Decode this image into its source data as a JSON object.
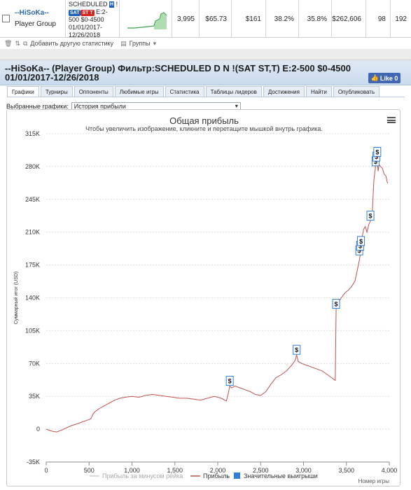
{
  "top_row": {
    "player_name": "--HiSoKa--",
    "player_group": "Player Group",
    "filter_lines": [
      "SCHEDULED",
      "E:2-",
      "500 $0-4500",
      "01/01/2017-",
      "12/26/2018"
    ],
    "filter_suffix": "!",
    "badge_h": "H",
    "badge_sat": "SAT",
    "badge_stt": "ST T",
    "values": [
      "3,995",
      "$65.73",
      "$161",
      "38.2%",
      "35.8%",
      "$262,606",
      "98",
      "192"
    ]
  },
  "toolbar": {
    "add_stat": "Добавить другую статистику",
    "groups": "Группы"
  },
  "panel": {
    "title": "--HiSoKa-- (Player Group) Фильтр:SCHEDULED D N !(SAT ST,T) E:2-500 $0-4500 01/01/2017-12/26/2018",
    "like_label": "Like 0",
    "tabs": [
      "Графики",
      "Турниры",
      "Оппоненты",
      "Любимые игры",
      "Статистика",
      "Таблицы лидеров",
      "Достижения",
      "Найти",
      "Опубликовать"
    ],
    "selected_label": "Выбранные графики:",
    "selected_value": "История прибыли"
  },
  "colors": {
    "profit_line": "#c0504d",
    "no_rake_line": "#cccccc",
    "big_win": "#2f7ed8",
    "sparkline": "#3aa04a"
  },
  "chart_data": {
    "type": "line",
    "title": "Общая прибыль",
    "subtitle": "Чтобы увеличить изображение, кликните и перетащите мышкой внутрь графика.",
    "xlabel": "Номер игры",
    "ylabel": "Суммарный итог (USD)",
    "xlim": [
      0,
      4000
    ],
    "ylim": [
      -35000,
      315000
    ],
    "x_ticks": [
      0,
      500,
      1000,
      1500,
      2000,
      2500,
      3000,
      3500,
      4000
    ],
    "x_tick_labels": [
      "0",
      "500",
      "1,000",
      "1,500",
      "2,000",
      "2,500",
      "3,000",
      "3,500",
      "4,000"
    ],
    "y_ticks": [
      -35000,
      0,
      35000,
      70000,
      105000,
      140000,
      175000,
      210000,
      245000,
      280000,
      315000
    ],
    "y_tick_labels": [
      "-35K",
      "0",
      "35K",
      "70K",
      "105K",
      "140K",
      "175K",
      "210K",
      "245K",
      "280K",
      "315K"
    ],
    "legend": [
      "Прибыль за минусом рейка",
      "Прибыль",
      "Значительные выигрыши"
    ],
    "legend_position": "bottom",
    "series": [
      {
        "name": "Прибыль",
        "x": [
          0,
          60,
          120,
          180,
          250,
          300,
          340,
          400,
          460,
          520,
          540,
          560,
          620,
          680,
          720,
          760,
          800,
          860,
          920,
          1000,
          1080,
          1160,
          1240,
          1320,
          1400,
          1480,
          1560,
          1640,
          1720,
          1800,
          1880,
          1960,
          2040,
          2100,
          2120,
          2140,
          2160,
          2200,
          2260,
          2320,
          2380,
          2440,
          2500,
          2560,
          2620,
          2680,
          2740,
          2800,
          2860,
          2900,
          2920,
          2940,
          2980,
          3040,
          3100,
          3160,
          3220,
          3280,
          3340,
          3370,
          3380,
          3400,
          3440,
          3480,
          3520,
          3560,
          3600,
          3640,
          3660,
          3680,
          3700,
          3720,
          3740,
          3760,
          3780,
          3800,
          3820,
          3840,
          3860,
          3870,
          3880,
          3900,
          3920,
          3940,
          3960,
          3980
        ],
        "values": [
          0,
          -2000,
          -3000,
          -1000,
          2000,
          4000,
          5000,
          7000,
          9000,
          11000,
          15000,
          18000,
          22000,
          25000,
          27000,
          29000,
          31000,
          33000,
          34000,
          35000,
          34000,
          36000,
          37000,
          36000,
          35000,
          34000,
          33000,
          33000,
          32000,
          31000,
          33000,
          35000,
          33000,
          30000,
          37000,
          46000,
          44000,
          46000,
          44000,
          42000,
          40000,
          37000,
          36000,
          40000,
          48000,
          55000,
          58000,
          62000,
          68000,
          73000,
          79000,
          72000,
          70000,
          68000,
          66000,
          64000,
          62000,
          58000,
          54000,
          52000,
          128000,
          134000,
          140000,
          145000,
          148000,
          152000,
          158000,
          175000,
          185000,
          203000,
          213000,
          216000,
          210000,
          218000,
          222000,
          228000,
          265000,
          280000,
          285000,
          275000,
          282000,
          280000,
          278000,
          272000,
          270000,
          262000
        ]
      },
      {
        "name": "Значительные выигрыши",
        "x": [
          2140,
          2920,
          3380,
          3650,
          3660,
          3670,
          3780,
          3840,
          3850,
          3860
        ],
        "values": [
          46000,
          79000,
          128000,
          185000,
          190000,
          195000,
          222000,
          280000,
          285000,
          290000
        ]
      }
    ]
  }
}
